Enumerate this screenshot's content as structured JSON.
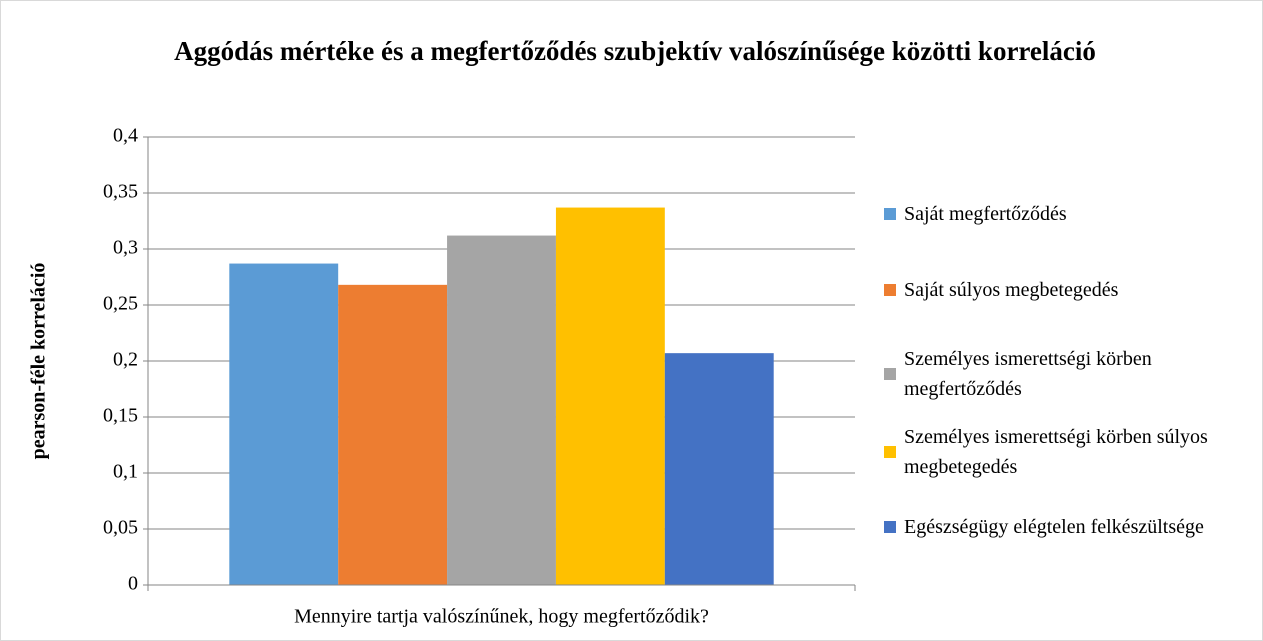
{
  "chart_data": {
    "type": "bar",
    "title": "Aggódás mértéke és a megfertőződés szubjektív valószínűsége közötti korreláció",
    "ylabel": "pearson-féle korreláció",
    "categories": [
      "Mennyire tartja valószínűnek, hogy megfertőződik?"
    ],
    "series": [
      {
        "name": "Saját megfertőződés",
        "color": "#5b9bd5",
        "values": [
          0.287
        ]
      },
      {
        "name": "Saját súlyos megbetegedés",
        "color": "#ed7d31",
        "values": [
          0.268
        ]
      },
      {
        "name": "Személyes ismerettségi körben megfertőződés",
        "color": "#a5a5a5",
        "values": [
          0.312
        ]
      },
      {
        "name": "Személyes ismerettségi körben súlyos megbetegedés",
        "color": "#ffc000",
        "values": [
          0.337
        ]
      },
      {
        "name": "Egészségügy elégtelen felkészültsége",
        "color": "#4472c4",
        "values": [
          0.207
        ]
      }
    ],
    "ylim": [
      0,
      0.4
    ],
    "yticks": [
      0,
      {
        "value": 0.05,
        "label": "0,05"
      },
      {
        "value": 0.1,
        "label": "0,1"
      },
      {
        "value": 0.15,
        "label": "0,15"
      },
      {
        "value": 0.2,
        "label": "0,2"
      },
      {
        "value": 0.25,
        "label": "0,25"
      },
      {
        "value": 0.3,
        "label": "0,3"
      },
      {
        "value": 0.35,
        "label": "0,35"
      },
      {
        "value": 0.4,
        "label": "0,4"
      }
    ],
    "grid": true,
    "legend": "right"
  }
}
